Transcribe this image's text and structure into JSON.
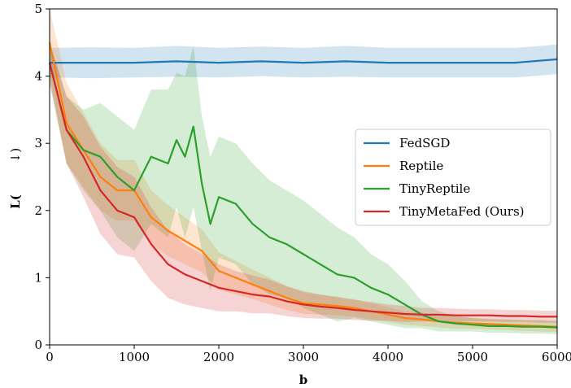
{
  "chart_data": {
    "type": "line",
    "xlabel": "𝐛",
    "ylabel_symbol": "𝐋(",
    "ylabel_arrow": "↓)",
    "xlim": [
      0,
      6000
    ],
    "ylim": [
      0,
      5
    ],
    "xticks": [
      0,
      1000,
      2000,
      3000,
      4000,
      5000,
      6000
    ],
    "xtick_labels": [
      "0",
      "1000",
      "2000",
      "3000",
      "4000",
      "5000",
      "6000"
    ],
    "yticks": [
      0,
      1,
      2,
      3,
      4,
      5
    ],
    "ytick_labels": [
      "0",
      "1",
      "2",
      "3",
      "4",
      "5"
    ],
    "grid": false,
    "legend_position": "center-right",
    "series": [
      {
        "name": "FedSGD",
        "color": "#1f77b4",
        "x": [
          0,
          500,
          1000,
          1500,
          2000,
          2500,
          3000,
          3500,
          4000,
          4500,
          5000,
          5500,
          6000
        ],
        "y": [
          4.2,
          4.2,
          4.2,
          4.22,
          4.2,
          4.22,
          4.2,
          4.22,
          4.2,
          4.2,
          4.2,
          4.2,
          4.25
        ],
        "band": [
          0.22,
          0.23,
          0.22,
          0.23,
          0.22,
          0.22,
          0.22,
          0.23,
          0.22,
          0.22,
          0.22,
          0.22,
          0.22
        ]
      },
      {
        "name": "Reptile",
        "color": "#ff7f0e",
        "x": [
          0,
          200,
          400,
          600,
          800,
          1000,
          1200,
          1400,
          1600,
          1800,
          2000,
          2200,
          2400,
          2600,
          2800,
          3000,
          3200,
          3400,
          3600,
          3800,
          4000,
          4200,
          4400,
          4600,
          4800,
          5000,
          5200,
          5400,
          5600,
          5800,
          6000
        ],
        "y": [
          4.5,
          3.3,
          2.9,
          2.5,
          2.3,
          2.3,
          1.9,
          1.7,
          1.55,
          1.4,
          1.1,
          1.0,
          0.9,
          0.8,
          0.7,
          0.62,
          0.6,
          0.58,
          0.55,
          0.5,
          0.45,
          0.4,
          0.38,
          0.35,
          0.33,
          0.32,
          0.31,
          0.3,
          0.29,
          0.28,
          0.27
        ],
        "band": [
          0.5,
          0.6,
          0.55,
          0.5,
          0.45,
          0.45,
          0.4,
          0.38,
          0.35,
          0.32,
          0.28,
          0.25,
          0.22,
          0.2,
          0.18,
          0.16,
          0.15,
          0.14,
          0.13,
          0.12,
          0.11,
          0.1,
          0.1,
          0.09,
          0.09,
          0.08,
          0.08,
          0.08,
          0.08,
          0.08,
          0.08
        ]
      },
      {
        "name": "TinyReptile",
        "color": "#2ca02c",
        "x": [
          0,
          200,
          400,
          600,
          800,
          1000,
          1200,
          1400,
          1500,
          1600,
          1700,
          1800,
          1900,
          2000,
          2200,
          2400,
          2600,
          2800,
          3000,
          3200,
          3400,
          3600,
          3800,
          4000,
          4200,
          4400,
          4600,
          4800,
          5000,
          5200,
          5400,
          5600,
          5800,
          6000
        ],
        "y": [
          4.2,
          3.2,
          2.9,
          2.8,
          2.5,
          2.3,
          2.8,
          2.7,
          3.05,
          2.8,
          3.25,
          2.4,
          1.8,
          2.2,
          2.1,
          1.8,
          1.6,
          1.5,
          1.35,
          1.2,
          1.05,
          1.0,
          0.85,
          0.75,
          0.6,
          0.45,
          0.35,
          0.32,
          0.3,
          0.28,
          0.28,
          0.27,
          0.27,
          0.26
        ],
        "band": [
          0.3,
          0.5,
          0.6,
          0.8,
          0.9,
          0.9,
          1.0,
          1.1,
          1.0,
          1.2,
          1.2,
          1.0,
          1.0,
          0.9,
          0.9,
          0.9,
          0.85,
          0.8,
          0.8,
          0.75,
          0.7,
          0.6,
          0.5,
          0.45,
          0.35,
          0.2,
          0.15,
          0.12,
          0.1,
          0.1,
          0.1,
          0.1,
          0.1,
          0.1
        ]
      },
      {
        "name": "TinyMetaFed (Ours)",
        "color": "#d62728",
        "x": [
          0,
          200,
          400,
          600,
          800,
          1000,
          1200,
          1400,
          1600,
          1800,
          2000,
          2200,
          2400,
          2600,
          2800,
          3000,
          3200,
          3400,
          3600,
          3800,
          4000,
          4200,
          4400,
          4600,
          4800,
          5000,
          5200,
          5400,
          5600,
          5800,
          6000
        ],
        "y": [
          4.2,
          3.2,
          2.8,
          2.3,
          2.0,
          1.9,
          1.5,
          1.2,
          1.05,
          0.95,
          0.85,
          0.8,
          0.75,
          0.72,
          0.65,
          0.6,
          0.57,
          0.55,
          0.52,
          0.5,
          0.48,
          0.46,
          0.45,
          0.45,
          0.44,
          0.44,
          0.44,
          0.43,
          0.43,
          0.42,
          0.42
        ],
        "band": [
          0.3,
          0.5,
          0.6,
          0.65,
          0.65,
          0.6,
          0.55,
          0.5,
          0.45,
          0.4,
          0.35,
          0.3,
          0.28,
          0.25,
          0.22,
          0.2,
          0.18,
          0.16,
          0.15,
          0.14,
          0.12,
          0.12,
          0.1,
          0.1,
          0.1,
          0.09,
          0.09,
          0.09,
          0.09,
          0.09,
          0.09
        ]
      }
    ]
  }
}
